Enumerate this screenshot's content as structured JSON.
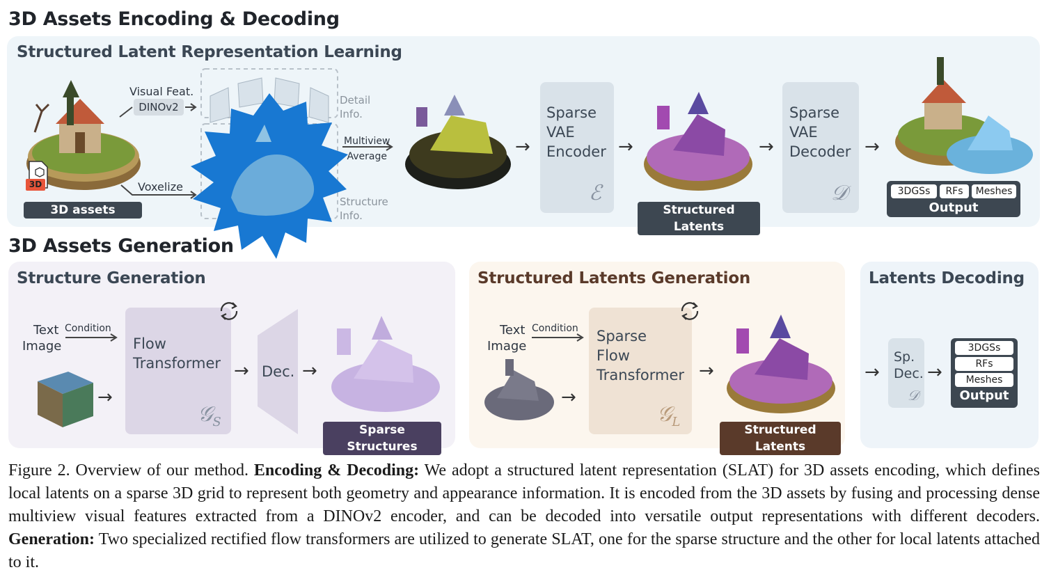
{
  "headings": {
    "encoding": "3D Assets Encoding & Decoding",
    "generation": "3D Assets Generation"
  },
  "encoding_panel": {
    "title": "Structured Latent Representation Learning",
    "visual_feat": "Visual Feat.",
    "dinov2": "DINOv2",
    "voxelize": "Voxelize",
    "assets_label": "3D assets",
    "file_badge": "3D",
    "detail_info": [
      "Detail",
      "Info."
    ],
    "structure_info": [
      "Structure",
      "Info."
    ],
    "multiview": [
      "Multiview",
      "Average"
    ],
    "encoder": {
      "lines": [
        "Sparse",
        "VAE",
        "Encoder"
      ],
      "symbol": "ℰ"
    },
    "latents_label": "Structured Latents",
    "decoder": {
      "lines": [
        "Sparse",
        "VAE",
        "Decoder"
      ],
      "symbol": "𝒟"
    },
    "output_chips": [
      "3DGSs",
      "RFs",
      "Meshes"
    ],
    "output_label": "Output"
  },
  "structure_panel": {
    "title": "Structure Generation",
    "text": "Text",
    "image": "Image",
    "condition": "Condition",
    "transformer": [
      "Flow",
      "Transformer"
    ],
    "symbol": "𝒢",
    "symbol_sub": "S",
    "dec": "Dec.",
    "result_label": "Sparse Structures"
  },
  "latents_panel": {
    "title": "Structured Latents Generation",
    "text": "Text",
    "image": "Image",
    "condition": "Condition",
    "transformer": [
      "Sparse",
      "Flow",
      "Transformer"
    ],
    "symbol": "𝒢",
    "symbol_sub": "L",
    "result_label": "Structured Latents"
  },
  "decoding_panel": {
    "title": "Latents Decoding",
    "sp_dec": [
      "Sp.",
      "Dec."
    ],
    "symbol": "𝒟",
    "output_chips": [
      "3DGSs",
      "RFs",
      "Meshes"
    ],
    "output_label": "Output"
  },
  "caption": {
    "prefix": "Figure 2. Overview of our method. ",
    "bold1": "Encoding & Decoding:",
    "text1": " We adopt a structured latent representation (SLAT) for 3D assets encoding, which defines local latents on a sparse 3D grid to represent both geometry and appearance information. It is encoded from the 3D assets by fusing and processing dense multiview visual features extracted from a DINOv2 encoder, and can be decoded into versatile output representations with different decoders. ",
    "bold2": "Generation:",
    "text2": " Two specialized rectified flow transformers are utilized to generate SLAT, one for the sparse structure and the other for local latents attached to it."
  },
  "colors": {
    "encoding_bg": "#eef5f9",
    "structure_bg": "#f3f1f7",
    "latents_bg": "#fcf6ee",
    "decoding_bg": "#eef4f9",
    "box_blue": "#d9e2e9",
    "box_purple": "#dcd6e6",
    "box_tan": "#efe2d4",
    "dark_label": "#3d4751",
    "purple_label": "#4a4060",
    "brown_label": "#5a3a2a",
    "burst_blue": "#1878d2"
  }
}
